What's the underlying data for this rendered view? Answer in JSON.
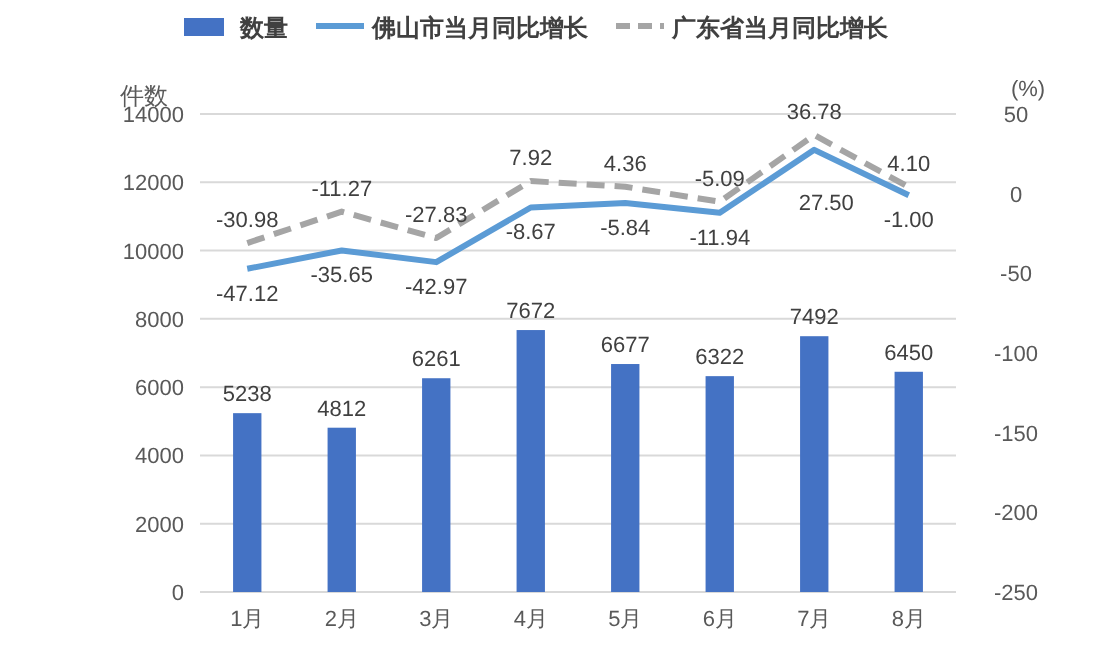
{
  "chart_data": {
    "type": "bar",
    "categories": [
      "1月",
      "2月",
      "3月",
      "4月",
      "5月",
      "6月",
      "7月",
      "8月"
    ],
    "series": [
      {
        "name": "数量",
        "color": "#4472c4",
        "values": [
          5238,
          4812,
          6261,
          7672,
          6677,
          6322,
          7492,
          6450
        ]
      },
      {
        "name": "佛山市当月同比增长",
        "type": "line",
        "axis": "y2",
        "color": "#5b9bd5",
        "line_style": "solid",
        "values": [
          -47.12,
          -35.65,
          -42.97,
          -8.67,
          -5.84,
          -11.94,
          27.5,
          -1
        ],
        "value_labels": [
          "-47.12",
          "-35.65",
          "-42.97",
          "-8.67",
          "-5.84",
          "-11.94",
          "27.50",
          "-1.00"
        ]
      },
      {
        "name": "广东省当月同比增长",
        "type": "line",
        "axis": "y2",
        "color": "#a5a5a5",
        "line_style": "dashed",
        "values": [
          -30.98,
          -11.27,
          -27.83,
          7.92,
          4.36,
          -5.09,
          36.78,
          4.1
        ],
        "value_labels": [
          "-30.98",
          "-11.27",
          "-27.83",
          "7.92",
          "4.36",
          "-5.09",
          "36.78",
          "4.10"
        ]
      }
    ],
    "ylabel": "件数",
    "y2label": "(%)",
    "ylim": [
      0,
      14000
    ],
    "yticks": [
      0,
      2000,
      4000,
      6000,
      8000,
      10000,
      12000,
      14000
    ],
    "y2lim": [
      -250,
      50
    ],
    "y2ticks": [
      -250,
      -200,
      -150,
      -100,
      -50,
      0,
      50
    ],
    "grid": "y",
    "legend": "top",
    "marker": "none",
    "data_labels": true
  }
}
